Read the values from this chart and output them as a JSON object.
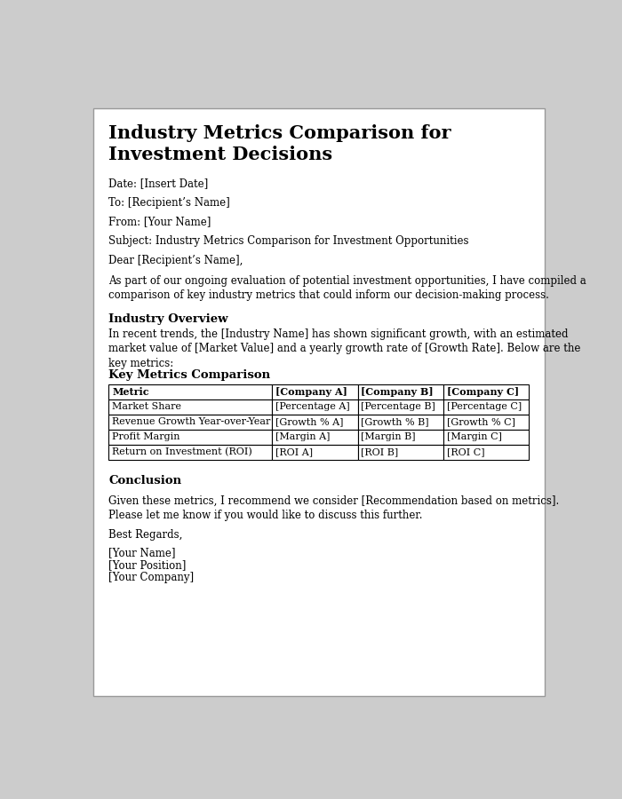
{
  "title": "Industry Metrics Comparison for\nInvestment Decisions",
  "title_fontsize": 15,
  "meta_lines": [
    "Date: [Insert Date]",
    "To: [Recipient’s Name]",
    "From: [Your Name]",
    "Subject: Industry Metrics Comparison for Investment Opportunities",
    "Dear [Recipient’s Name],"
  ],
  "body_intro": "As part of our ongoing evaluation of potential investment opportunities, I have compiled a\ncomparison of key industry metrics that could inform our decision-making process.",
  "section1_title": "Industry Overview",
  "section1_body": "In recent trends, the [Industry Name] has shown significant growth, with an estimated\nmarket value of [Market Value] and a yearly growth rate of [Growth Rate]. Below are the\nkey metrics:",
  "section2_title": "Key Metrics Comparison",
  "table_header": [
    "Metric",
    "[Company A]",
    "[Company B]",
    "[Company C]"
  ],
  "table_rows": [
    [
      "Market Share",
      "[Percentage A]",
      "[Percentage B]",
      "[Percentage C]"
    ],
    [
      "Revenue Growth Year-over-Year",
      "[Growth % A]",
      "[Growth % B]",
      "[Growth % C]"
    ],
    [
      "Profit Margin",
      "[Margin A]",
      "[Margin B]",
      "[Margin C]"
    ],
    [
      "Return on Investment (ROI)",
      "[ROI A]",
      "[ROI B]",
      "[ROI C]"
    ]
  ],
  "section3_title": "Conclusion",
  "conclusion_body": "Given these metrics, I recommend we consider [Recommendation based on metrics].\nPlease let me know if you would like to discuss this further.",
  "closing": "Best Regards,",
  "signature_lines": [
    "[Your Name]",
    "[Your Position]",
    "[Your Company]"
  ],
  "background_color": "#ffffff",
  "border_color": "#999999",
  "text_color": "#000000",
  "font_family": "DejaVu Serif",
  "body_fontsize": 8.5,
  "section_title_fontsize": 9.5,
  "meta_fontsize": 8.5,
  "table_fontsize": 8.0,
  "outer_bg": "#cccccc"
}
